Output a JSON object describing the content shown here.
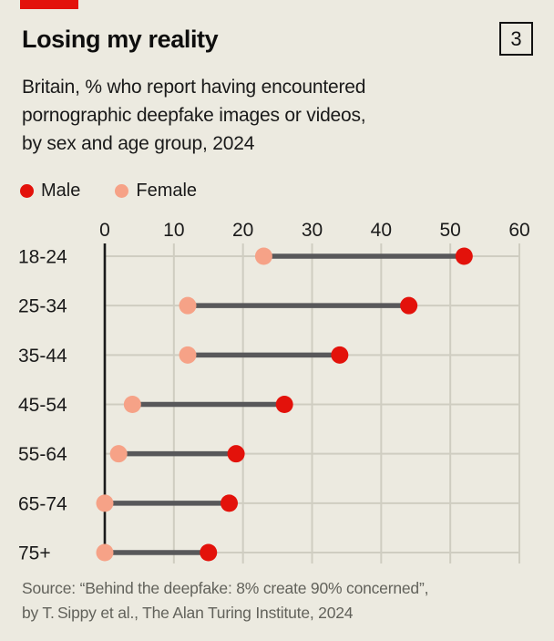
{
  "brand": {
    "accent_red": "#E3120B",
    "background": "#ECEAE0"
  },
  "header": {
    "title": "Losing my reality",
    "figure_number": "3",
    "subtitle_lines": [
      "Britain, % who report having encountered",
      "pornographic deepfake images or videos,",
      "by sex and age group, 2024"
    ]
  },
  "legend": [
    {
      "label": "Male",
      "color": "#E3120B"
    },
    {
      "label": "Female",
      "color": "#F6A287"
    }
  ],
  "chart_data": {
    "type": "scatter",
    "subtype": "dumbbell-dot-plot",
    "categories": [
      "18-24",
      "25-34",
      "35-44",
      "45-54",
      "55-64",
      "65-74",
      "75+"
    ],
    "series": [
      {
        "name": "Male",
        "color": "#E3120B",
        "values": [
          52,
          44,
          34,
          26,
          19,
          18,
          15
        ]
      },
      {
        "name": "Female",
        "color": "#F6A287",
        "values": [
          23,
          12,
          12,
          4,
          2,
          0,
          0
        ]
      }
    ],
    "title": "Losing my reality",
    "xlabel": "",
    "ylabel": "",
    "x_ticks": [
      0,
      10,
      20,
      30,
      40,
      50,
      60
    ],
    "xlim": [
      0,
      60
    ],
    "axis_position": "top",
    "grid": true,
    "legend_position": "top-left",
    "connector_color": "#58585A",
    "gridline_color": "#CFCDC1",
    "axis_line_color": "#1a1a1a",
    "tick_label_color": "#1a1a1a"
  },
  "source_lines": [
    "Source: “Behind the deepfake: 8% create 90% concerned”,",
    "by T. Sippy et al., The Alan Turing Institute, 2024"
  ]
}
